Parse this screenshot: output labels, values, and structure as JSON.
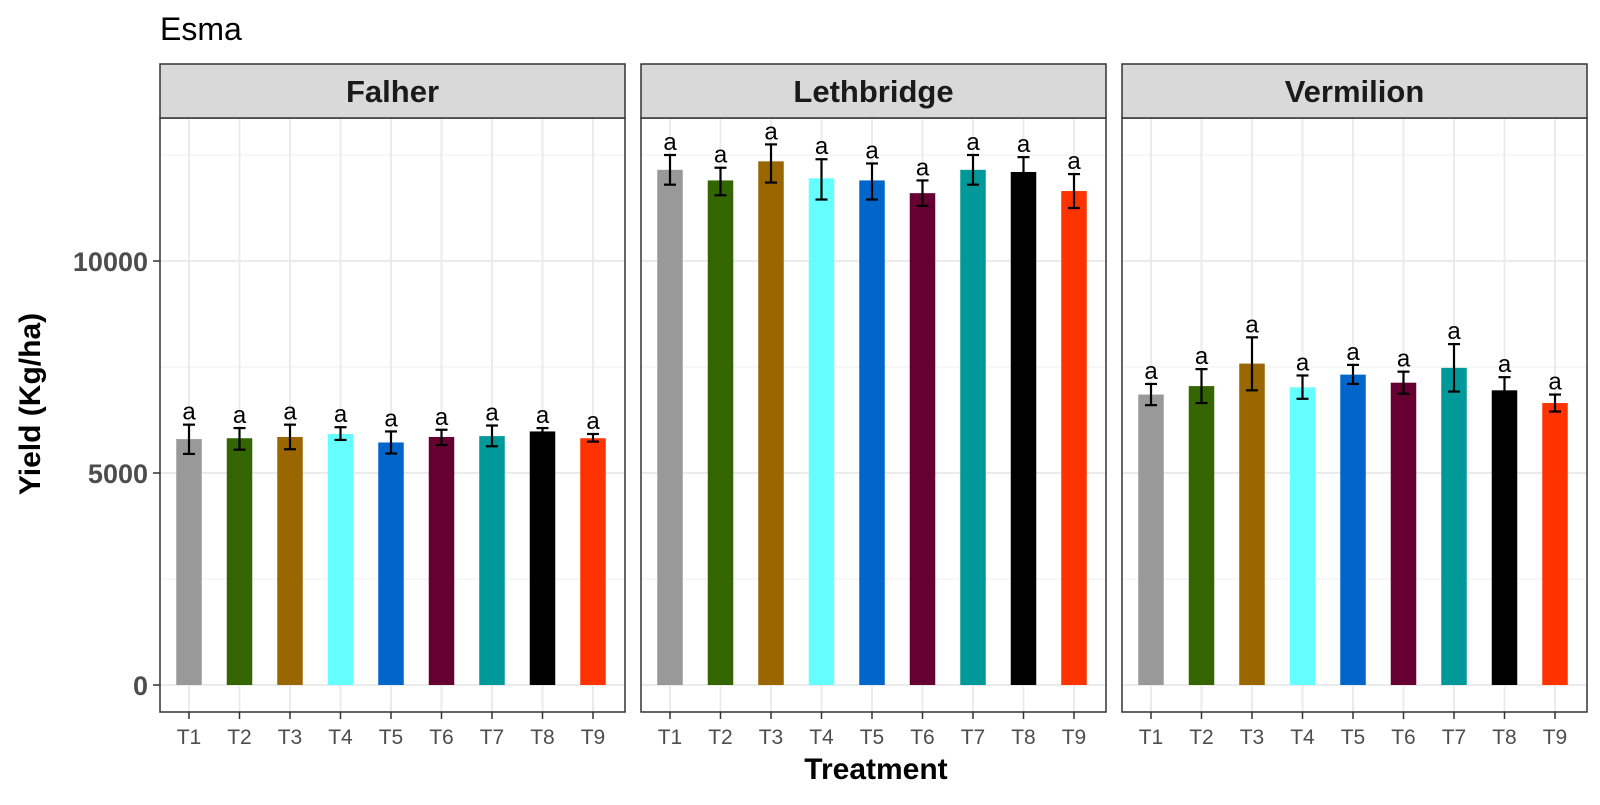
{
  "chart_data": {
    "type": "bar",
    "title": "Esma",
    "xlabel": "Treatment",
    "ylabel": "Yield (Kg/ha)",
    "ylim": [
      0,
      13500
    ],
    "yticks": [
      0,
      5000,
      10000
    ],
    "grid": true,
    "legend": "none",
    "categories": [
      "T1",
      "T2",
      "T3",
      "T4",
      "T5",
      "T6",
      "T7",
      "T8",
      "T9"
    ],
    "colors": [
      "#999999",
      "#336600",
      "#996600",
      "#66FFFF",
      "#0066CC",
      "#660033",
      "#009999",
      "#000000",
      "#FF3300"
    ],
    "facets": [
      {
        "name": "Falher",
        "values": [
          5800,
          5820,
          5850,
          5920,
          5720,
          5850,
          5870,
          5980,
          5820
        ],
        "err_low": [
          5450,
          5550,
          5560,
          5780,
          5460,
          5660,
          5630,
          5900,
          5740
        ],
        "err_high": [
          6140,
          6060,
          6140,
          6080,
          5980,
          6020,
          6120,
          6060,
          5920
        ],
        "labels": [
          "a",
          "a",
          "a",
          "a",
          "a",
          "a",
          "a",
          "a",
          "a"
        ]
      },
      {
        "name": "Lethbridge",
        "values": [
          12150,
          11900,
          12350,
          11950,
          11900,
          11600,
          12150,
          12100,
          11650
        ],
        "err_low": [
          11800,
          11550,
          11850,
          11450,
          11450,
          11300,
          11800,
          11700,
          11250
        ],
        "err_high": [
          12500,
          12200,
          12750,
          12400,
          12300,
          11900,
          12500,
          12450,
          12050
        ],
        "labels": [
          "a",
          "a",
          "a",
          "a",
          "a",
          "a",
          "a",
          "a",
          "a"
        ]
      },
      {
        "name": "Vermilion",
        "values": [
          6850,
          7050,
          7580,
          7020,
          7320,
          7130,
          7480,
          6950,
          6650
        ],
        "err_low": [
          6600,
          6650,
          6950,
          6750,
          7100,
          6870,
          6920,
          6650,
          6450
        ],
        "err_high": [
          7100,
          7450,
          8200,
          7300,
          7550,
          7390,
          8040,
          7260,
          6850
        ],
        "labels": [
          "a",
          "a",
          "a",
          "a",
          "a",
          "a",
          "a",
          "a",
          "a"
        ]
      }
    ]
  }
}
